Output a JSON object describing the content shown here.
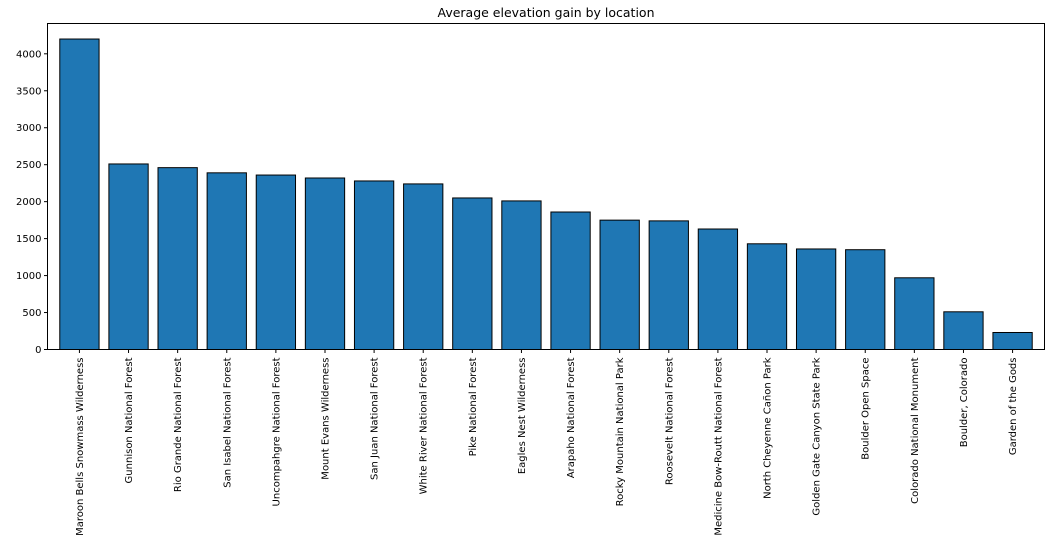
{
  "chart_data": {
    "type": "bar",
    "title": "Average elevation gain by location",
    "xlabel": "",
    "ylabel": "",
    "categories": [
      "Maroon Bells Snowmass Wilderness",
      "Gunnison National Forest",
      "Rio Grande National Forest",
      "San Isabel National Forest",
      "Uncompahgre National Forest",
      "Mount Evans Wilderness",
      "San Juan National Forest",
      "White River National Forest",
      "Pike National Forest",
      "Eagles Nest Wilderness",
      "Arapaho National Forest",
      "Rocky Mountain National Park",
      "Roosevelt National Forest",
      "Medicine Bow-Routt National Forest",
      "North Cheyenne Cañon Park",
      "Golden Gate Canyon State Park",
      "Boulder Open Space",
      "Colorado National Monument",
      "Boulder, Colorado",
      "Garden of the Gods"
    ],
    "values": [
      4200,
      2510,
      2460,
      2390,
      2360,
      2320,
      2280,
      2240,
      2050,
      2010,
      1860,
      1750,
      1740,
      1630,
      1430,
      1360,
      1350,
      970,
      510,
      230
    ],
    "ylim": [
      0,
      4410
    ],
    "yticks": [
      0,
      500,
      1000,
      1500,
      2000,
      2500,
      3000,
      3500,
      4000
    ],
    "grid": false,
    "colors": {
      "bar": "#1f77b4",
      "edge": "#000000"
    }
  }
}
